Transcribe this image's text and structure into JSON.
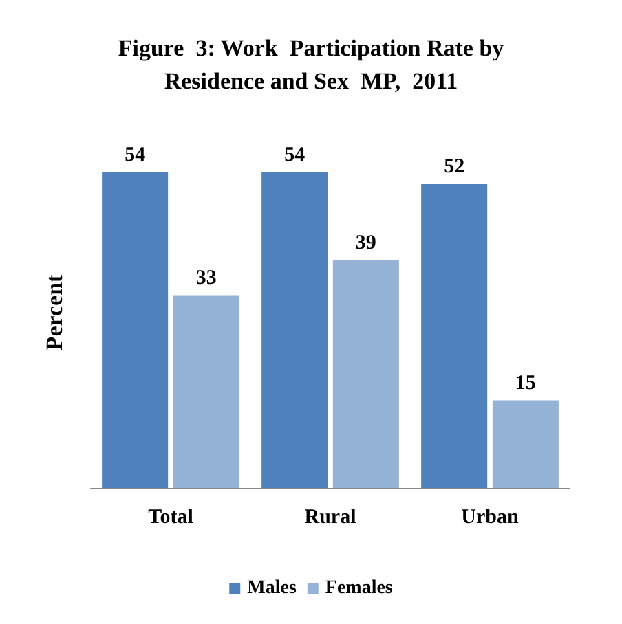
{
  "chart_data": {
    "type": "bar",
    "title": "Figure  3: Work  Participation Rate by\nResidence and Sex  MP,  2011",
    "ylabel": "Percent",
    "categories": [
      "Total",
      "Rural",
      "Urban"
    ],
    "series": [
      {
        "name": "Males",
        "color": "#4f81bd",
        "values": [
          54,
          54,
          52
        ]
      },
      {
        "name": "Females",
        "color": "#95b3d7",
        "values": [
          33,
          39,
          15
        ]
      }
    ],
    "data_labels": true,
    "grid": false,
    "legend": "bottom"
  }
}
